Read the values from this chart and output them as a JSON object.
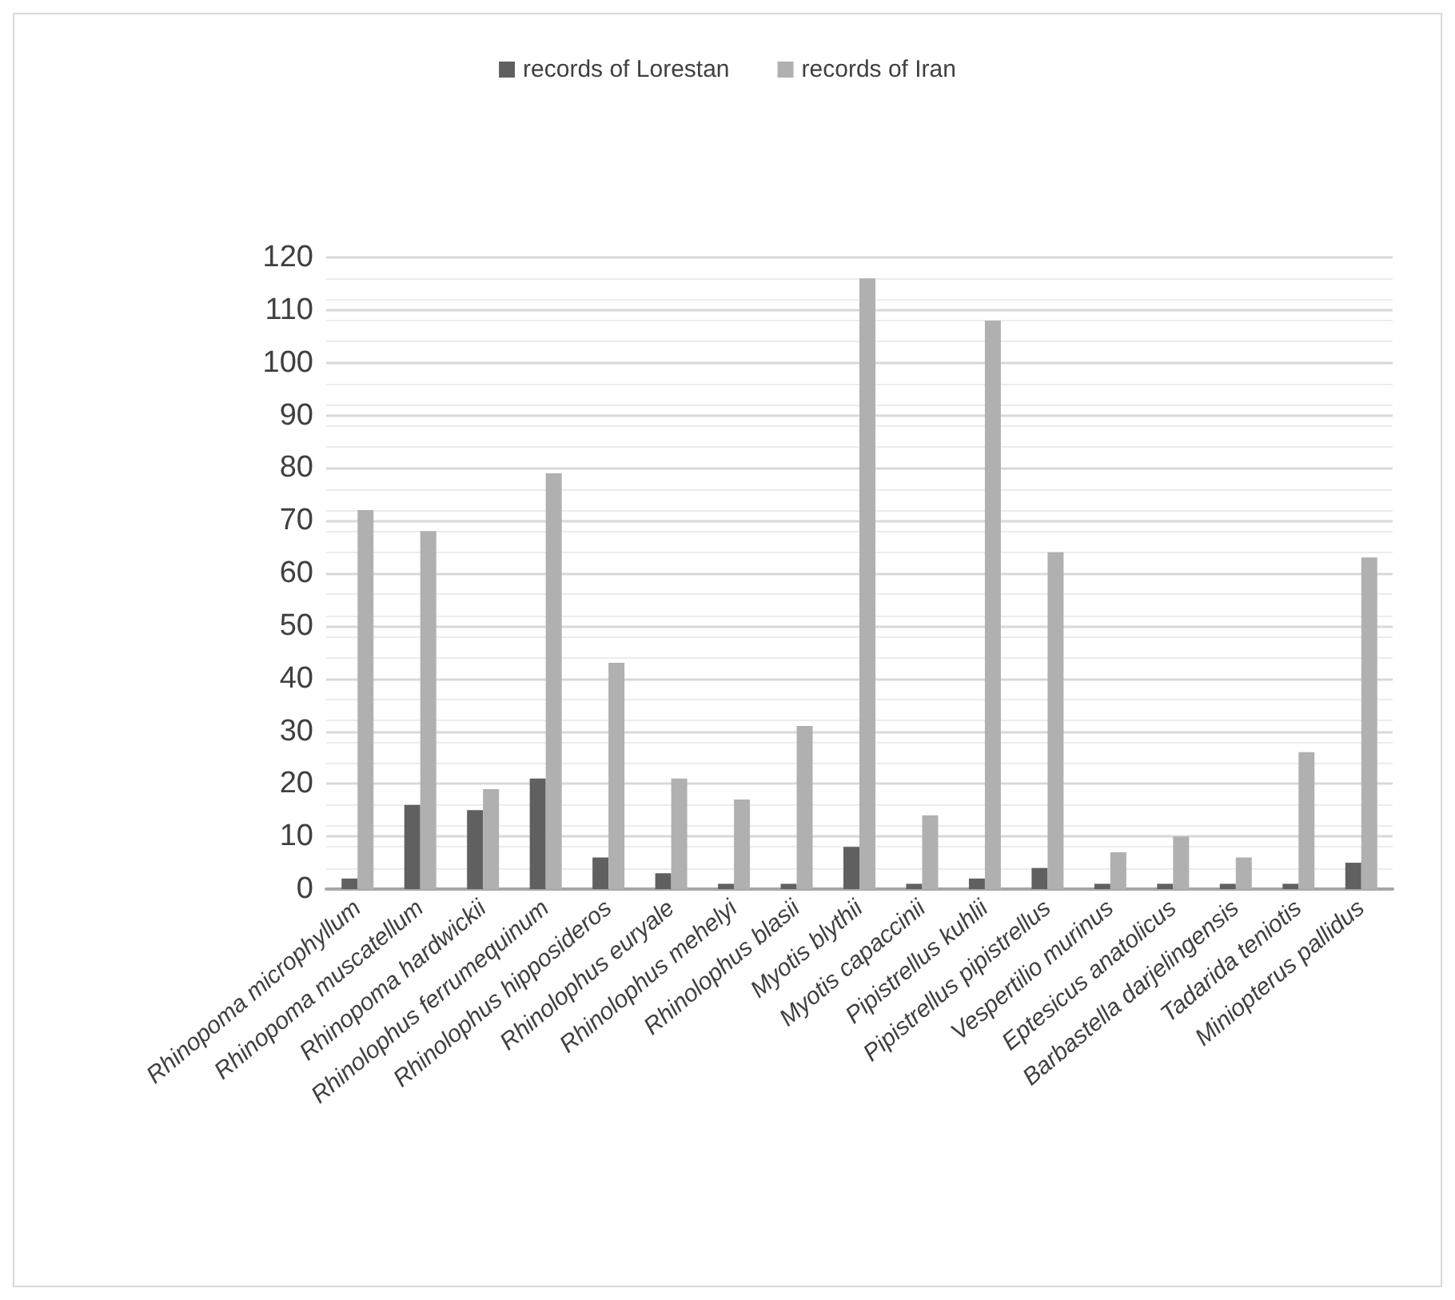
{
  "chart_data": {
    "type": "bar",
    "categories": [
      "Rhinopoma microphyllum",
      "Rhinopoma muscatellum",
      "Rhinopoma hardwickii",
      "Rhinolophus ferrumequinum",
      "Rhinolophus hipposideros",
      "Rhinolophus euryale",
      "Rhinolophus mehelyi",
      "Rhinolophus blasii",
      "Myotis blythii",
      "Myotis capaccinii",
      "Pipistrellus kuhlii",
      "Pipistrellus pipistrellus",
      "Vespertilio murinus",
      "Eptesicus anatolicus",
      "Barbastella darjelingensis",
      "Tadarida teniotis",
      "Miniopterus pallidus"
    ],
    "series": [
      {
        "name": "records of Lorestan",
        "color": "#606060",
        "values": [
          2,
          16,
          15,
          21,
          6,
          3,
          1,
          1,
          8,
          1,
          2,
          4,
          1,
          1,
          1,
          1,
          5
        ]
      },
      {
        "name": "records of Iran",
        "color": "#b0b0b0",
        "values": [
          72,
          68,
          19,
          79,
          43,
          21,
          17,
          31,
          116,
          14,
          108,
          64,
          7,
          10,
          6,
          26,
          63
        ]
      }
    ],
    "ylim": [
      0,
      120
    ],
    "yticks": [
      0,
      10,
      20,
      30,
      40,
      50,
      60,
      70,
      80,
      90,
      100,
      110,
      120
    ],
    "grid": "y",
    "legend": "top"
  }
}
